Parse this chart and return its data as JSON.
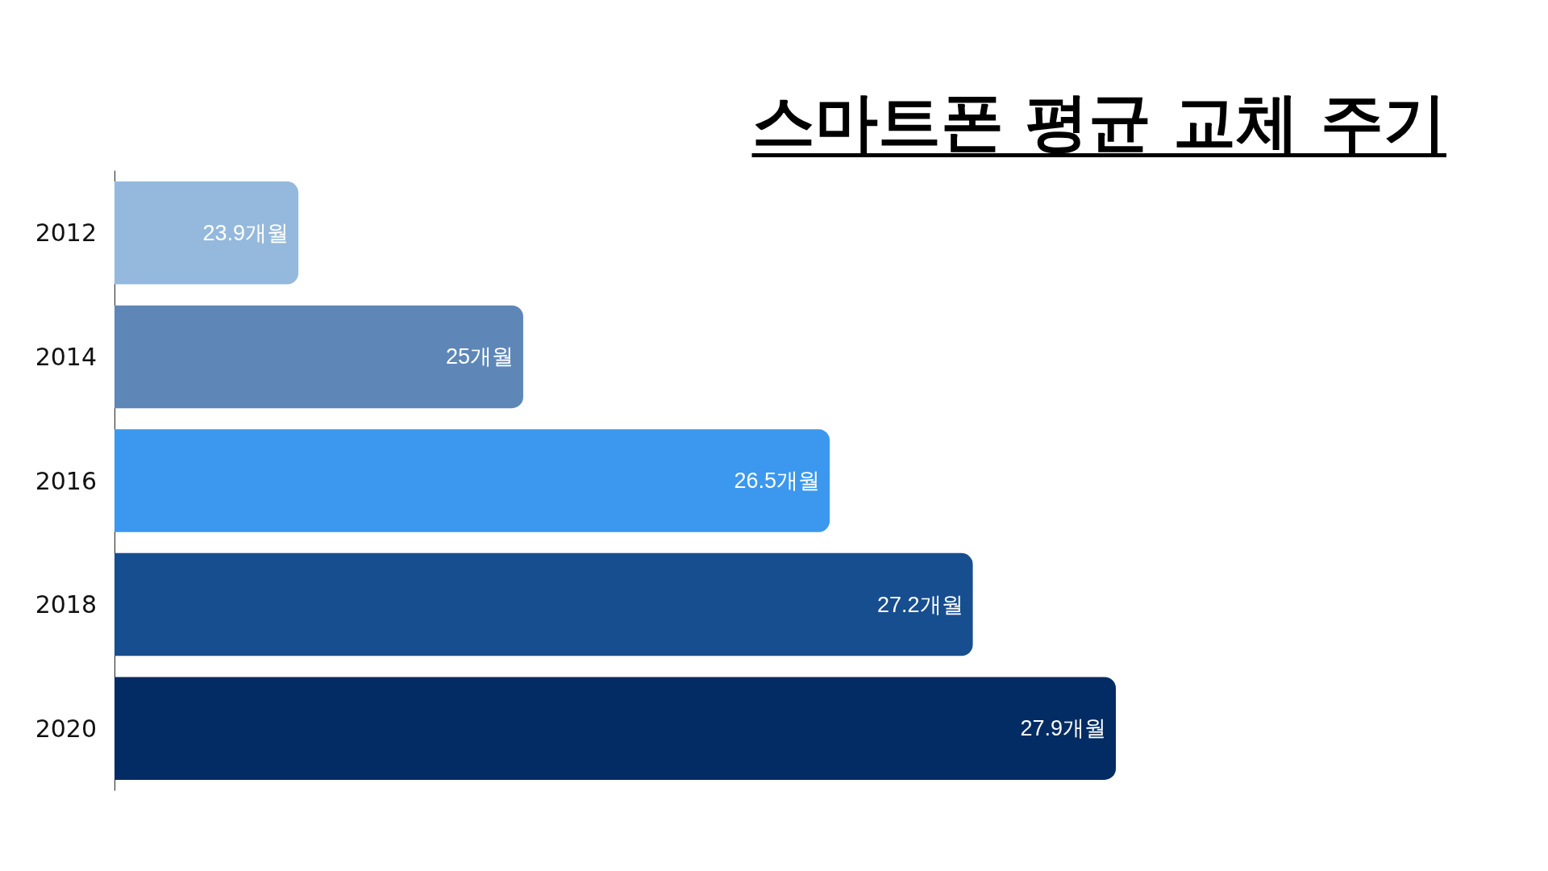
{
  "chart_data": {
    "type": "bar",
    "orientation": "horizontal",
    "title": "스마트폰 평균 교체 주기",
    "categories": [
      "2012",
      "2014",
      "2016",
      "2018",
      "2020"
    ],
    "values": [
      23.9,
      25,
      26.5,
      27.2,
      27.9
    ],
    "colors": [
      "#95b9dc",
      "#5e87b8",
      "#3b98ee",
      "#174e8f",
      "#022c63"
    ],
    "value_labels": [
      "23.9개월",
      "25개월",
      "26.5개월",
      "27.2개월",
      "27.9개월"
    ],
    "xlim": [
      23,
      27.9
    ],
    "tick_labels": "y"
  }
}
